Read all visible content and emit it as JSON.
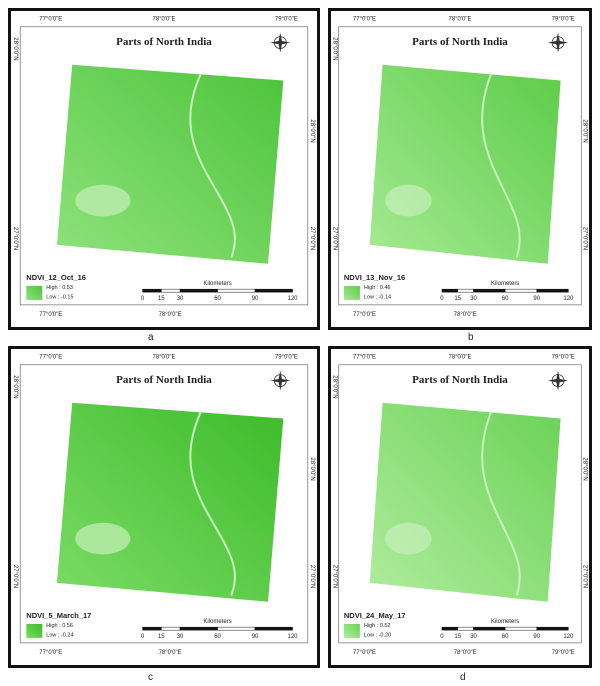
{
  "panels": [
    {
      "caption": "a",
      "title": "Parts of North India",
      "top_labels": [
        "77°0'0\"E",
        "78°0'0\"E",
        "79°0'0\"E"
      ],
      "bottom_labels": [
        "77°0'0\"E",
        "78°0'0\"E"
      ],
      "left_labels": [
        "28°0'0\"N",
        "27°0'0\"N"
      ],
      "right_labels": [
        "28°0'0\"N",
        "27°0'0\"N"
      ],
      "legend": {
        "name": "NDVI_12_Oct_16",
        "high": "High : 0.53",
        "low": "Low : -0.15"
      },
      "scale": {
        "unit": "Kilometers",
        "ticks": [
          "0",
          "15",
          "30",
          "60",
          "90",
          "120"
        ]
      }
    },
    {
      "caption": "b",
      "title": "Parts of North India",
      "top_labels": [
        "77°0'0\"E",
        "78°0'0\"E",
        "79°0'0\"E"
      ],
      "bottom_labels": [
        "77°0'0\"E",
        "78°0'0\"E"
      ],
      "left_labels": [
        "28°0'0\"N",
        "27°0'0\"N"
      ],
      "right_labels": [
        "28°0'0\"N",
        "27°0'0\"N"
      ],
      "legend": {
        "name": "NDVI_13_Nov_16",
        "high": "High : 0.46",
        "low": "Low : -0.14"
      },
      "scale": {
        "unit": "Kilometers",
        "ticks": [
          "0",
          "15",
          "30",
          "60",
          "90",
          "120"
        ]
      }
    },
    {
      "caption": "c",
      "title": "Parts of North India",
      "top_labels": [
        "77°0'0\"E",
        "78°0'0\"E",
        "79°0'0\"E"
      ],
      "bottom_labels": [
        "77°0'0\"E",
        "78°0'0\"E"
      ],
      "left_labels": [
        "28°0'0\"N",
        "27°0'0\"N"
      ],
      "right_labels": [
        "28°0'0\"N",
        "27°0'0\"N"
      ],
      "legend": {
        "name": "NDVI_5_March_17",
        "high": "High : 0.56",
        "low": "Low : -0.24"
      },
      "scale": {
        "unit": "Kilometers",
        "ticks": [
          "0",
          "15",
          "30",
          "60",
          "90",
          "120"
        ]
      }
    },
    {
      "caption": "d",
      "title": "Parts of North India",
      "top_labels": [
        "77°0'0\"E",
        "78°0'0\"E",
        "79°0'0\"E"
      ],
      "bottom_labels": [
        "77°0'0\"E",
        "78°0'0\"E",
        "79°0'0\"E"
      ],
      "left_labels": [
        "28°0'0\"N",
        "27°0'0\"N"
      ],
      "right_labels": [
        "28°0'0\"N",
        "27°0'0\"N"
      ],
      "legend": {
        "name": "NDVI_24_May_17",
        "high": "High : 0.52",
        "low": "Low : -0.20"
      },
      "scale": {
        "unit": "Kilometers",
        "ticks": [
          "0",
          "15",
          "30",
          "60",
          "90",
          "120"
        ]
      }
    }
  ]
}
